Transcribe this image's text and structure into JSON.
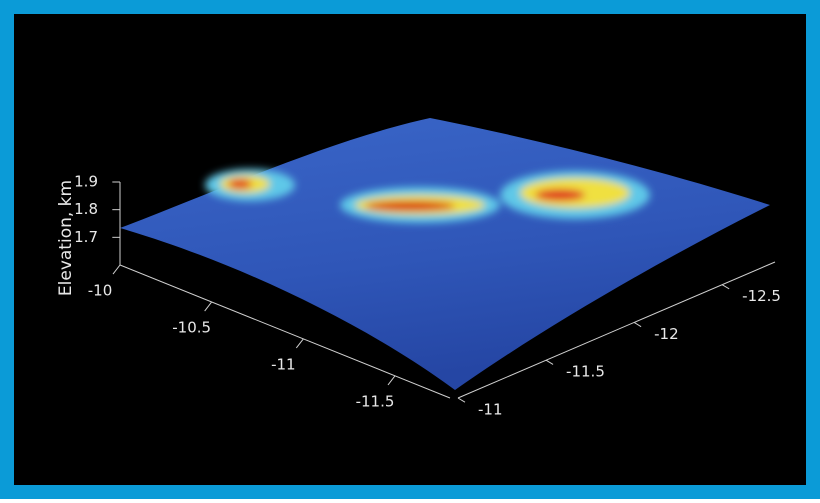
{
  "chart_data": {
    "type": "surface3d",
    "zlabel": "Elevation, km",
    "zlim": [
      1.6,
      1.9
    ],
    "zticks": [
      1.7,
      1.8,
      1.9
    ],
    "xlim": [
      -10,
      -11.8
    ],
    "xticks": [
      -10,
      -10.5,
      -11,
      -11.5
    ],
    "ylim": [
      -11,
      -12.8
    ],
    "yticks": [
      -11,
      -11.5,
      -12,
      -12.5
    ],
    "background": "#000000",
    "frame_color": "#0b9bd7"
  }
}
